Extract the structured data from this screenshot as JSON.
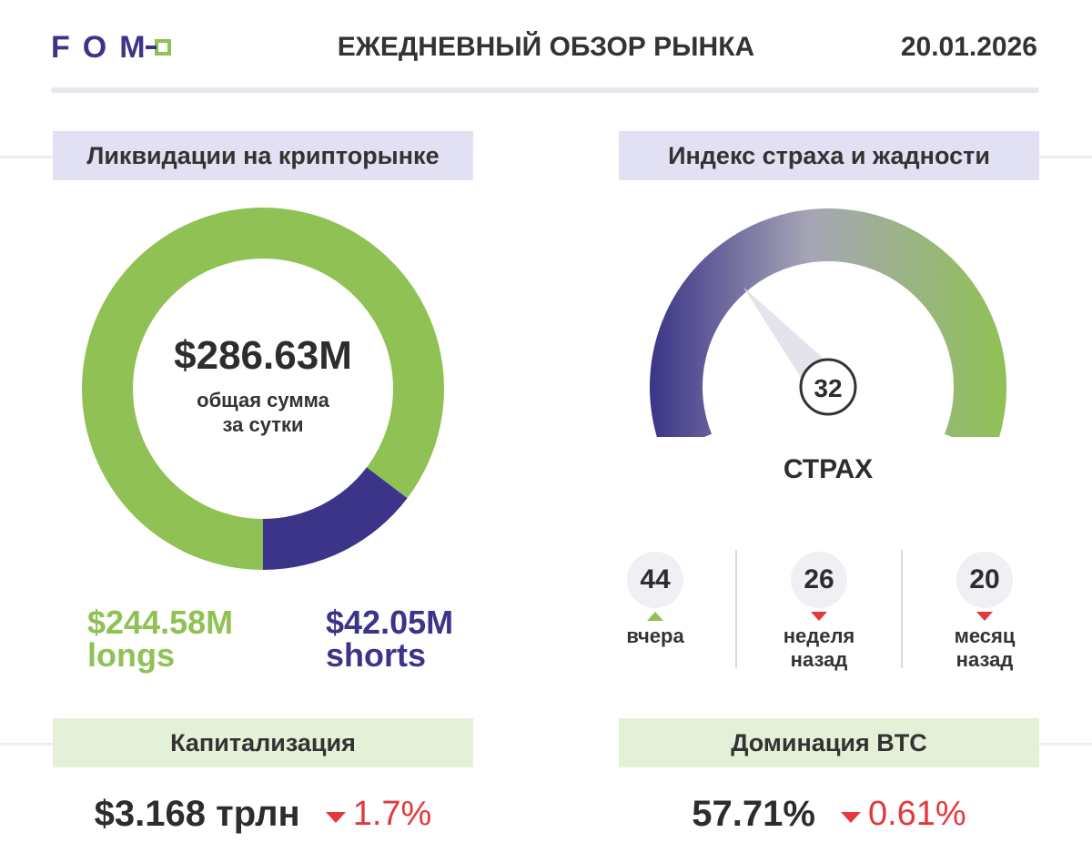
{
  "header": {
    "logo_text": "FOM",
    "title": "ЕЖЕДНЕВНЫЙ ОБЗОР РЫНКА",
    "date": "20.01.2026"
  },
  "liquidations": {
    "label": "Ликвидации на крипторынке",
    "total": "$286.63M",
    "caption_line1": "общая сумма",
    "caption_line2": "за сутки",
    "longs_value": "$244.58M",
    "longs_label": "longs",
    "shorts_value": "$42.05M",
    "shorts_label": "shorts"
  },
  "fear_greed": {
    "label": "Индекс страха и жадности",
    "value": "32",
    "status": "СТРАХ",
    "history": [
      {
        "value": "44",
        "label_line1": "вчера",
        "label_line2": "",
        "trend": "up"
      },
      {
        "value": "26",
        "label_line1": "неделя",
        "label_line2": "назад",
        "trend": "down"
      },
      {
        "value": "20",
        "label_line1": "месяц",
        "label_line2": "назад",
        "trend": "down"
      }
    ]
  },
  "market_cap": {
    "label": "Капитализация",
    "value": "$3.168 трлн",
    "change": "1.7%",
    "trend": "down"
  },
  "btc_dominance": {
    "label": "Доминация BTC",
    "value": "57.71%",
    "change": "0.61%",
    "trend": "down"
  },
  "colors": {
    "brand_purple": "#3b3488",
    "brand_green": "#8fc154",
    "negative_red": "#e5383b"
  },
  "chart_data": [
    {
      "type": "pie",
      "categories": [
        "longs",
        "shorts"
      ],
      "values": [
        244.58,
        42.05
      ],
      "total": 286.63,
      "unit": "$M",
      "colors": [
        "#8fc154",
        "#3b3488"
      ]
    },
    {
      "type": "gauge",
      "value": 32,
      "range": [
        0,
        100
      ],
      "status": "СТРАХ"
    }
  ]
}
